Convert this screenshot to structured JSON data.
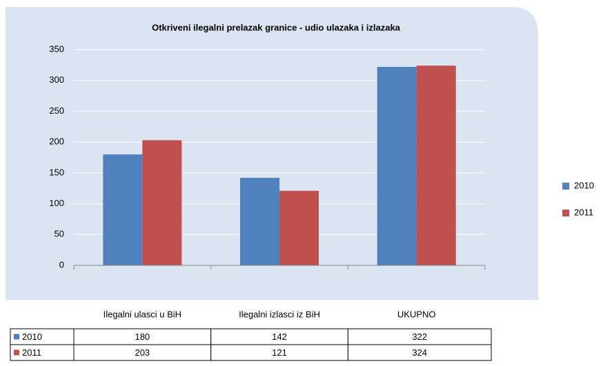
{
  "chart_data": {
    "type": "bar",
    "title": "Otkriveni ilegalni prelazak granice - udio ulazaka i izlazaka",
    "categories": [
      "Ilegalni ulasci u BiH",
      "Ilegalni izlasci iz BiH",
      "UKUPNO"
    ],
    "series": [
      {
        "name": "2010",
        "color": "#4f81bd",
        "values": [
          180,
          142,
          322
        ]
      },
      {
        "name": "2011",
        "color": "#c0504d",
        "values": [
          203,
          121,
          324
        ]
      }
    ],
    "ylim": [
      0,
      350
    ],
    "yticks": [
      0,
      50,
      100,
      150,
      200,
      250,
      300,
      350
    ],
    "grid": true,
    "legend": "right",
    "data_table": true
  }
}
